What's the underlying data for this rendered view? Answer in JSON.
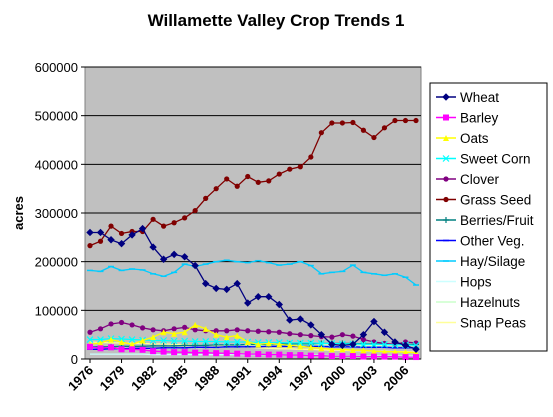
{
  "chart_data": {
    "type": "line",
    "title": "Willamette Valley Crop Trends 1",
    "ylabel": "acres",
    "xlabel": "",
    "ylim": [
      0,
      600000
    ],
    "yticks": [
      "0",
      "100000",
      "200000",
      "300000",
      "400000",
      "500000",
      "600000"
    ],
    "x": [
      1976,
      1977,
      1978,
      1979,
      1980,
      1981,
      1982,
      1983,
      1984,
      1985,
      1986,
      1987,
      1988,
      1989,
      1990,
      1991,
      1992,
      1993,
      1994,
      1995,
      1996,
      1997,
      1998,
      1999,
      2000,
      2001,
      2002,
      2003,
      2004,
      2005,
      2006,
      2007
    ],
    "xticks": [
      "1976",
      "1979",
      "1982",
      "1985",
      "1988",
      "1991",
      "1994",
      "1997",
      "2000",
      "2003",
      "2006"
    ],
    "plot_background": "#c0c0c0",
    "grid": true,
    "legend_position": "right",
    "series": [
      {
        "name": "Wheat",
        "color": "#000080",
        "marker": "diamond",
        "values": [
          260000,
          260000,
          245000,
          237000,
          255000,
          268000,
          230000,
          205000,
          215000,
          210000,
          192000,
          155000,
          145000,
          143000,
          155000,
          115000,
          128000,
          128000,
          112000,
          80000,
          82000,
          70000,
          50000,
          30000,
          28000,
          30000,
          50000,
          77000,
          55000,
          35000,
          28000,
          20000
        ]
      },
      {
        "name": "Barley",
        "color": "#ff00ff",
        "marker": "square",
        "values": [
          25000,
          22000,
          24000,
          20000,
          20000,
          19000,
          16000,
          15000,
          14000,
          14000,
          13000,
          13000,
          12000,
          12000,
          11000,
          10000,
          10000,
          9000,
          9000,
          8000,
          8000,
          7000,
          7000,
          6000,
          6000,
          6000,
          5000,
          5000,
          5000,
          5000,
          4000,
          4000
        ]
      },
      {
        "name": "Oats",
        "color": "#ffff00",
        "marker": "triangle",
        "values": [
          30000,
          33000,
          40000,
          35000,
          30000,
          38000,
          45000,
          55000,
          52000,
          55000,
          70000,
          62000,
          50000,
          45000,
          48000,
          35000,
          30000,
          32000,
          30000,
          28000,
          26000,
          24000,
          22000,
          20000,
          20000,
          18000,
          18000,
          16000,
          15000,
          15000,
          14000,
          13000
        ]
      },
      {
        "name": "Sweet Corn",
        "color": "#00ffff",
        "marker": "x",
        "values": [
          40000,
          40000,
          42000,
          41000,
          40000,
          39000,
          38000,
          38000,
          37000,
          37000,
          36000,
          36000,
          36000,
          35000,
          35000,
          35000,
          34000,
          34000,
          34000,
          33000,
          33000,
          33000,
          32000,
          32000,
          31000,
          31000,
          30000,
          30000,
          30000,
          29000,
          29000,
          28000
        ]
      },
      {
        "name": "Clover",
        "color": "#800080",
        "marker": "circle",
        "values": [
          55000,
          62000,
          72000,
          75000,
          70000,
          64000,
          60000,
          58000,
          62000,
          65000,
          60000,
          58000,
          58000,
          58000,
          60000,
          58000,
          57000,
          56000,
          55000,
          52000,
          50000,
          48000,
          46000,
          45000,
          50000,
          47000,
          40000,
          35000,
          32000,
          30000,
          35000,
          33000
        ]
      },
      {
        "name": "Grass Seed",
        "color": "#800000",
        "marker": "circle",
        "values": [
          233000,
          242000,
          273000,
          258000,
          262000,
          262000,
          287000,
          273000,
          280000,
          290000,
          305000,
          330000,
          350000,
          370000,
          355000,
          375000,
          363000,
          366000,
          380000,
          390000,
          395000,
          415000,
          465000,
          485000,
          485000,
          486000,
          470000,
          455000,
          475000,
          490000,
          490000,
          490000
        ]
      },
      {
        "name": "Berries/Fruit",
        "color": "#008080",
        "marker": "plus",
        "values": [
          25000,
          25000,
          25000,
          26000,
          26000,
          26000,
          27000,
          27000,
          27000,
          28000,
          28000,
          28000,
          29000,
          29000,
          29000,
          30000,
          30000,
          30000,
          31000,
          31000,
          31000,
          31000,
          32000,
          32000,
          32000,
          32000,
          31000,
          31000,
          31000,
          30000,
          30000,
          30000
        ]
      },
      {
        "name": "Other Veg.",
        "color": "#0000ff",
        "marker": "dash",
        "values": [
          20000,
          20000,
          21000,
          21000,
          22000,
          22000,
          22000,
          23000,
          23000,
          23000,
          24000,
          24000,
          24000,
          25000,
          25000,
          25000,
          25000,
          26000,
          26000,
          26000,
          26000,
          26000,
          26000,
          25000,
          25000,
          25000,
          24000,
          24000,
          24000,
          23000,
          23000,
          23000
        ]
      },
      {
        "name": "Hay/Silage",
        "color": "#00ccff",
        "marker": "dash",
        "values": [
          182000,
          180000,
          190000,
          182000,
          185000,
          183000,
          175000,
          170000,
          178000,
          195000,
          190000,
          195000,
          200000,
          203000,
          200000,
          198000,
          202000,
          198000,
          193000,
          195000,
          200000,
          192000,
          175000,
          178000,
          180000,
          193000,
          178000,
          175000,
          172000,
          175000,
          168000,
          152000
        ]
      },
      {
        "name": "Hops",
        "color": "#ccffff",
        "marker": "none",
        "values": [
          10000,
          10000,
          10000,
          10000,
          10000,
          10000,
          9000,
          9000,
          9000,
          9000,
          9000,
          9000,
          9000,
          9000,
          9000,
          9000,
          9000,
          9000,
          9000,
          8000,
          8000,
          8000,
          8000,
          7000,
          7000,
          7000,
          6000,
          6000,
          6000,
          6000,
          6000,
          6000
        ]
      },
      {
        "name": "Hazelnuts",
        "color": "#ccffcc",
        "marker": "none",
        "values": [
          20000,
          20000,
          20000,
          21000,
          21000,
          21000,
          22000,
          22000,
          22000,
          23000,
          23000,
          24000,
          24000,
          25000,
          25000,
          26000,
          26000,
          27000,
          27000,
          28000,
          28000,
          29000,
          29000,
          29000,
          29000,
          29000,
          28000,
          28000,
          28000,
          28000,
          28000,
          28000
        ]
      },
      {
        "name": "Snap Peas",
        "color": "#ffff99",
        "marker": "none",
        "values": [
          35000,
          34000,
          33000,
          33000,
          32000,
          32000,
          31000,
          31000,
          30000,
          30000,
          29000,
          28000,
          27000,
          26000,
          25000,
          24000,
          23000,
          22000,
          21000,
          21000,
          20000,
          20000,
          19000,
          18000,
          18000,
          17000,
          17000,
          16000,
          16000,
          15000,
          15000,
          14000
        ]
      }
    ]
  }
}
